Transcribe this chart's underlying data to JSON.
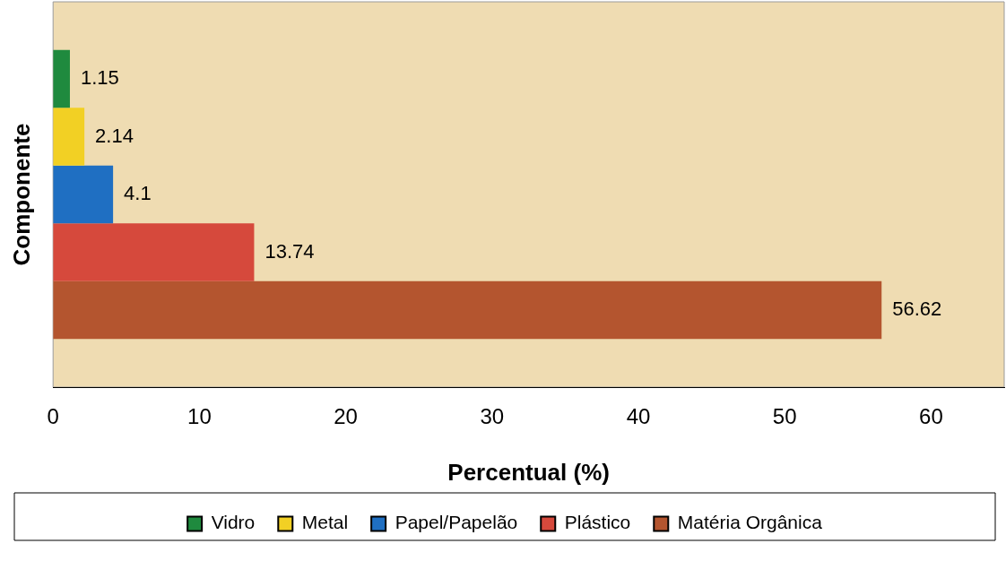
{
  "chart_data": {
    "type": "bar",
    "orientation": "horizontal",
    "xlabel": "Percentual (%)",
    "ylabel": "Componente",
    "categories": [
      null
    ],
    "series": [
      {
        "name": "Vidro",
        "color": "#1f8a3e",
        "values": [
          1.15
        ]
      },
      {
        "name": "Metal",
        "color": "#f2d024",
        "values": [
          2.14
        ]
      },
      {
        "name": "Papel/Papelão",
        "color": "#1f6fc2",
        "values": [
          4.1
        ]
      },
      {
        "name": "Plástico",
        "color": "#d6493c",
        "values": [
          13.74
        ]
      },
      {
        "name": "Matéria Orgânica",
        "color": "#b4552f",
        "values": [
          56.62
        ]
      }
    ],
    "xlim": [
      0,
      65
    ],
    "xticks": [
      0,
      10,
      20,
      30,
      40,
      50,
      60
    ],
    "tick_labels": "x",
    "grid": false,
    "legend": "bottom",
    "data_labels": true
  }
}
